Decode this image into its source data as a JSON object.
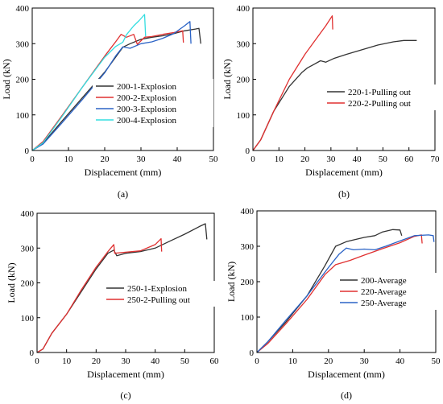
{
  "chart_data": [
    {
      "type": "line",
      "panel_label": "(a)",
      "xlabel": "Displacement (mm)",
      "ylabel": "Load (kN)",
      "xlim": [
        0,
        50
      ],
      "ylim": [
        0,
        400
      ],
      "xticks": [
        0,
        10,
        20,
        30,
        40,
        50
      ],
      "yticks": [
        0,
        100,
        200,
        300,
        400
      ],
      "legend_position": "center-right",
      "series": [
        {
          "name": "200-1-Explosion",
          "color": "#333333",
          "points": [
            [
              0,
              0
            ],
            [
              3,
              20
            ],
            [
              8,
              80
            ],
            [
              14,
              150
            ],
            [
              20,
              220
            ],
            [
              23,
              262
            ],
            [
              25,
              290
            ],
            [
              27,
              300
            ],
            [
              30,
              312
            ],
            [
              33,
              318
            ],
            [
              36,
              322
            ],
            [
              39,
              328
            ],
            [
              42,
              336
            ],
            [
              45,
              341
            ],
            [
              46,
              343
            ],
            [
              46.5,
              300
            ]
          ]
        },
        {
          "name": "200-2-Explosion",
          "color": "#e03030",
          "points": [
            [
              0,
              0
            ],
            [
              3,
              25
            ],
            [
              8,
              95
            ],
            [
              14,
              180
            ],
            [
              20,
              265
            ],
            [
              23,
              305
            ],
            [
              24.5,
              326
            ],
            [
              26,
              318
            ],
            [
              28,
              326
            ],
            [
              29,
              298
            ],
            [
              31,
              318
            ],
            [
              33,
              320
            ],
            [
              36,
              326
            ],
            [
              39,
              331
            ],
            [
              41.5,
              336
            ],
            [
              41.7,
              303
            ]
          ]
        },
        {
          "name": "200-3-Explosion",
          "color": "#2b63c6",
          "points": [
            [
              0,
              0
            ],
            [
              3,
              18
            ],
            [
              8,
              75
            ],
            [
              14,
              145
            ],
            [
              20,
              218
            ],
            [
              23,
              265
            ],
            [
              25,
              291
            ],
            [
              27,
              287
            ],
            [
              30,
              300
            ],
            [
              33,
              305
            ],
            [
              36,
              315
            ],
            [
              39,
              328
            ],
            [
              42,
              350
            ],
            [
              43.5,
              362
            ],
            [
              43.8,
              300
            ]
          ]
        },
        {
          "name": "200-4-Explosion",
          "color": "#33dde0",
          "points": [
            [
              0,
              0
            ],
            [
              3,
              22
            ],
            [
              8,
              92
            ],
            [
              14,
              180
            ],
            [
              20,
              262
            ],
            [
              23,
              292
            ],
            [
              25,
              304
            ],
            [
              26,
              325
            ],
            [
              28,
              350
            ],
            [
              29.5,
              365
            ],
            [
              31,
              382
            ],
            [
              31.3,
              320
            ]
          ]
        }
      ]
    },
    {
      "type": "line",
      "panel_label": "(b)",
      "xlabel": "Displacement (mm)",
      "ylabel": "Load (kN)",
      "xlim": [
        0,
        70
      ],
      "ylim": [
        0,
        400
      ],
      "xticks": [
        0,
        10,
        20,
        30,
        40,
        50,
        60,
        70
      ],
      "yticks": [
        0,
        100,
        200,
        300,
        400
      ],
      "legend_position": "lower-right",
      "series": [
        {
          "name": "220-1-Pulling out",
          "color": "#333333",
          "points": [
            [
              0,
              0
            ],
            [
              3,
              30
            ],
            [
              8,
              110
            ],
            [
              14,
              180
            ],
            [
              19,
              220
            ],
            [
              21,
              232
            ],
            [
              23,
              240
            ],
            [
              26,
              252
            ],
            [
              28,
              248
            ],
            [
              31,
              258
            ],
            [
              36,
              270
            ],
            [
              42,
              283
            ],
            [
              48,
              296
            ],
            [
              54,
              305
            ],
            [
              58,
              309
            ],
            [
              63,
              309
            ]
          ]
        },
        {
          "name": "220-2-Pulling out",
          "color": "#e03030",
          "points": [
            [
              0,
              0
            ],
            [
              3,
              30
            ],
            [
              8,
              110
            ],
            [
              14,
              200
            ],
            [
              20,
              270
            ],
            [
              25,
              320
            ],
            [
              28,
              350
            ],
            [
              30.5,
              378
            ],
            [
              30.7,
              340
            ]
          ]
        }
      ]
    },
    {
      "type": "line",
      "panel_label": "(c)",
      "xlabel": "Displacement (mm)",
      "ylabel": "Load (kN)",
      "xlim": [
        0,
        60
      ],
      "ylim": [
        0,
        400
      ],
      "xticks": [
        0,
        10,
        20,
        30,
        40,
        50,
        60
      ],
      "yticks": [
        0,
        100,
        200,
        300,
        400
      ],
      "legend_position": "center-right",
      "series": [
        {
          "name": "250-1-Explosion",
          "color": "#333333",
          "points": [
            [
              0,
              0
            ],
            [
              2,
              10
            ],
            [
              5,
              55
            ],
            [
              10,
              110
            ],
            [
              15,
              175
            ],
            [
              20,
              240
            ],
            [
              24,
              285
            ],
            [
              26,
              294
            ],
            [
              27,
              278
            ],
            [
              30,
              285
            ],
            [
              35,
              290
            ],
            [
              40,
              300
            ],
            [
              45,
              320
            ],
            [
              50,
              340
            ],
            [
              55,
              362
            ],
            [
              57,
              370
            ],
            [
              57.5,
              325
            ]
          ]
        },
        {
          "name": "250-2-Pulling out",
          "color": "#e03030",
          "points": [
            [
              0,
              0
            ],
            [
              2,
              10
            ],
            [
              5,
              55
            ],
            [
              10,
              110
            ],
            [
              15,
              180
            ],
            [
              20,
              245
            ],
            [
              24,
              290
            ],
            [
              26,
              310
            ],
            [
              26.3,
              285
            ],
            [
              30,
              288
            ],
            [
              35,
              292
            ],
            [
              40,
              310
            ],
            [
              42,
              327
            ],
            [
              42.2,
              290
            ]
          ]
        }
      ]
    },
    {
      "type": "line",
      "panel_label": "(d)",
      "xlabel": "Displacement (mm)",
      "ylabel": "Load (kN)",
      "xlim": [
        0,
        50
      ],
      "ylim": [
        0,
        400
      ],
      "xticks": [
        0,
        10,
        20,
        30,
        40,
        50
      ],
      "yticks": [
        0,
        100,
        200,
        300,
        400
      ],
      "legend_position": "center-right",
      "series": [
        {
          "name": "200-Average",
          "color": "#333333",
          "points": [
            [
              0,
              0
            ],
            [
              3,
              30
            ],
            [
              8,
              85
            ],
            [
              14,
              160
            ],
            [
              19,
              245
            ],
            [
              22,
              300
            ],
            [
              25,
              313
            ],
            [
              27,
              318
            ],
            [
              30,
              325
            ],
            [
              33,
              330
            ],
            [
              35,
              340
            ],
            [
              38,
              347
            ],
            [
              40,
              346
            ],
            [
              40.5,
              330
            ]
          ]
        },
        {
          "name": "220-Average",
          "color": "#e03030",
          "points": [
            [
              0,
              0
            ],
            [
              3,
              25
            ],
            [
              8,
              80
            ],
            [
              14,
              150
            ],
            [
              19,
              220
            ],
            [
              22,
              248
            ],
            [
              26,
              260
            ],
            [
              30,
              275
            ],
            [
              35,
              293
            ],
            [
              40,
              310
            ],
            [
              44,
              328
            ],
            [
              46,
              332
            ],
            [
              46.2,
              308
            ]
          ]
        },
        {
          "name": "250-Average",
          "color": "#2b63c6",
          "points": [
            [
              0,
              0
            ],
            [
              3,
              30
            ],
            [
              8,
              90
            ],
            [
              14,
              160
            ],
            [
              20,
              240
            ],
            [
              23,
              278
            ],
            [
              25,
              295
            ],
            [
              27,
              290
            ],
            [
              30,
              292
            ],
            [
              33,
              290
            ],
            [
              36,
              300
            ],
            [
              40,
              315
            ],
            [
              44,
              330
            ],
            [
              48,
              332
            ],
            [
              49.3,
              330
            ],
            [
              49.5,
              312
            ]
          ]
        }
      ]
    }
  ]
}
